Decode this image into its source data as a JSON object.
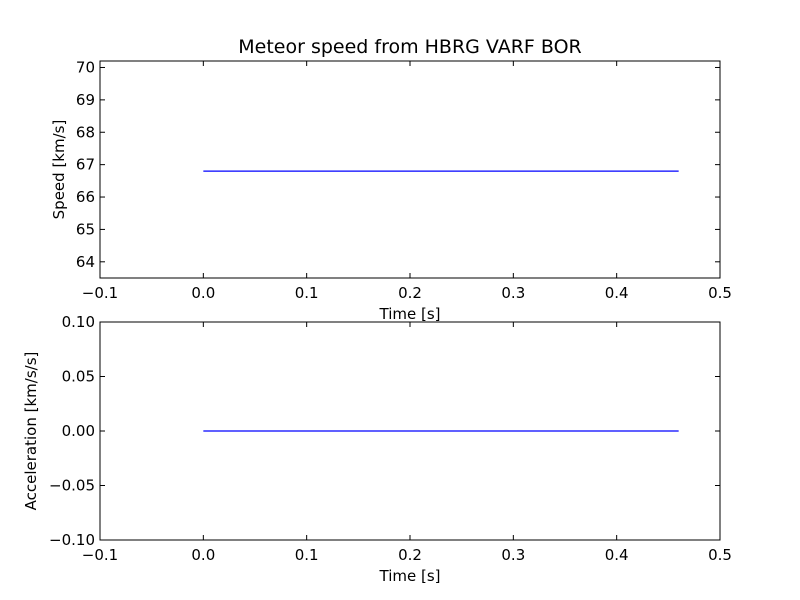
{
  "title": "Meteor speed from  HBRG VARF BOR",
  "chart_data": [
    {
      "type": "line",
      "xlabel": "Time [s]",
      "ylabel": "Speed [km/s]",
      "xlim": [
        -0.1,
        0.5
      ],
      "ylim": [
        63.5,
        70.2
      ],
      "xticks": [
        -0.1,
        0.0,
        0.1,
        0.2,
        0.3,
        0.4,
        0.5
      ],
      "xtick_labels": [
        "−0.1",
        "0.0",
        "0.1",
        "0.2",
        "0.3",
        "0.4",
        "0.5"
      ],
      "yticks": [
        64,
        65,
        66,
        67,
        68,
        69,
        70
      ],
      "ytick_labels": [
        "64",
        "65",
        "66",
        "67",
        "68",
        "69",
        "70"
      ],
      "grid": false,
      "color": "#0000ff",
      "x": [
        0.0,
        0.46
      ],
      "y": [
        66.8,
        66.8
      ]
    },
    {
      "type": "line",
      "xlabel": "Time [s]",
      "ylabel": "Acceleration [km/s/s]",
      "xlim": [
        -0.1,
        0.5
      ],
      "ylim": [
        -0.1,
        0.1
      ],
      "xticks": [
        -0.1,
        0.0,
        0.1,
        0.2,
        0.3,
        0.4,
        0.5
      ],
      "xtick_labels": [
        "−0.1",
        "0.0",
        "0.1",
        "0.2",
        "0.3",
        "0.4",
        "0.5"
      ],
      "yticks": [
        -0.1,
        -0.05,
        0.0,
        0.05,
        0.1
      ],
      "ytick_labels": [
        "−0.10",
        "−0.05",
        "0.00",
        "0.05",
        "0.10"
      ],
      "grid": false,
      "color": "#0000ff",
      "x": [
        0.0,
        0.46
      ],
      "y": [
        0.0,
        0.0
      ]
    }
  ]
}
